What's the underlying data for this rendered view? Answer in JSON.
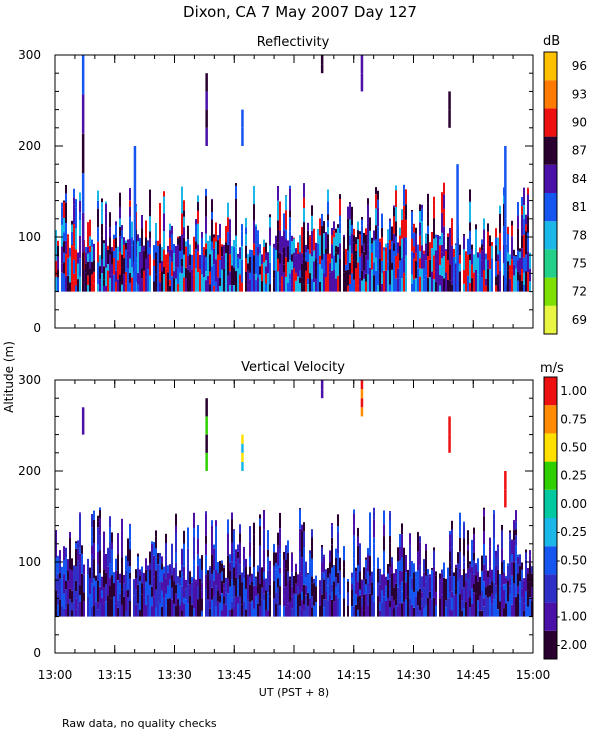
{
  "title": "Dixon, CA  7 May 2007  Day 127",
  "footnote": "Raw data, no quality checks",
  "chart_data": [
    {
      "type": "heatmap",
      "title": "Reflectivity",
      "xlabel": "UT  (PST + 8)",
      "ylabel": "Altitude (m)",
      "xlim": [
        "13:00",
        "15:00"
      ],
      "xticks": [
        "13:00",
        "13:15",
        "13:30",
        "13:45",
        "14:00",
        "14:15",
        "14:30",
        "14:45",
        "15:00"
      ],
      "ylim": [
        0,
        300
      ],
      "yticks": [
        "0",
        "100",
        "200",
        "300"
      ],
      "colorbar": {
        "unit": "dB",
        "ticks": [
          "69",
          "72",
          "75",
          "78",
          "81",
          "84",
          "87",
          "90",
          "93",
          "96"
        ],
        "colors": [
          "#e8f542",
          "#7ee000",
          "#22d08a",
          "#1ab8e8",
          "#1555f0",
          "#4a10a8",
          "#2a0030",
          "#ee1010",
          "#ff7a00",
          "#ffc000"
        ]
      },
      "echo_base_m": 40,
      "typical_top_m": [
        80,
        160
      ],
      "dominant_palette": [
        "#4a10a8",
        "#2a0030",
        "#1555f0",
        "#1ab8e8",
        "#ee1010"
      ],
      "tall_echoes": [
        {
          "time": "13:07",
          "bottom_m": 40,
          "top_m": 300,
          "palette": [
            "#2a0030",
            "#4a10a8",
            "#1555f0"
          ]
        },
        {
          "time": "13:38",
          "bottom_m": 200,
          "top_m": 280,
          "palette": [
            "#4a10a8",
            "#2a0030"
          ]
        },
        {
          "time": "13:47",
          "bottom_m": 200,
          "top_m": 240,
          "palette": [
            "#1555f0"
          ]
        },
        {
          "time": "14:07",
          "bottom_m": 280,
          "top_m": 300,
          "palette": [
            "#2a0030"
          ]
        },
        {
          "time": "14:17",
          "bottom_m": 260,
          "top_m": 300,
          "palette": [
            "#4a10a8"
          ]
        },
        {
          "time": "14:39",
          "bottom_m": 220,
          "top_m": 260,
          "palette": [
            "#2a0030"
          ]
        },
        {
          "time": "13:20",
          "bottom_m": 40,
          "top_m": 200,
          "palette": [
            "#1555f0"
          ]
        },
        {
          "time": "14:41",
          "bottom_m": 40,
          "top_m": 180,
          "palette": [
            "#1555f0"
          ]
        },
        {
          "time": "14:53",
          "bottom_m": 40,
          "top_m": 200,
          "palette": [
            "#1555f0"
          ]
        }
      ]
    },
    {
      "type": "heatmap",
      "title": "Vertical Velocity",
      "xlabel": "UT  (PST + 8)",
      "ylabel": "Altitude (m)",
      "xlim": [
        "13:00",
        "15:00"
      ],
      "xticks": [
        "13:00",
        "13:15",
        "13:30",
        "13:45",
        "14:00",
        "14:15",
        "14:30",
        "14:45",
        "15:00"
      ],
      "ylim": [
        0,
        300
      ],
      "yticks": [
        "0",
        "100",
        "200",
        "300"
      ],
      "colorbar": {
        "unit": "m/s",
        "ticks": [
          "-2.00",
          "-1.00",
          "-0.75",
          "-0.50",
          "-0.25",
          "0.00",
          "0.25",
          "0.50",
          "0.75",
          "1.00"
        ],
        "colors": [
          "#2a0030",
          "#4a10a8",
          "#2f2fc8",
          "#1555f0",
          "#1ab8e8",
          "#00c8a0",
          "#30d000",
          "#ffe000",
          "#ff8c00",
          "#ee1010"
        ]
      },
      "echo_base_m": 40,
      "typical_top_m": [
        80,
        160
      ],
      "dominant_palette": [
        "#2a0030",
        "#4a10a8",
        "#2f2fc8",
        "#1555f0"
      ],
      "tall_echoes": [
        {
          "time": "13:07",
          "bottom_m": 240,
          "top_m": 270,
          "palette": [
            "#4a10a8"
          ]
        },
        {
          "time": "13:38",
          "bottom_m": 200,
          "top_m": 280,
          "palette": [
            "#30d000",
            "#2a0030"
          ]
        },
        {
          "time": "13:47",
          "bottom_m": 200,
          "top_m": 240,
          "palette": [
            "#1ab8e8",
            "#ffe000"
          ]
        },
        {
          "time": "14:07",
          "bottom_m": 280,
          "top_m": 300,
          "palette": [
            "#4a10a8"
          ]
        },
        {
          "time": "14:17",
          "bottom_m": 260,
          "top_m": 300,
          "palette": [
            "#ff8c00",
            "#ee1010"
          ]
        },
        {
          "time": "14:39",
          "bottom_m": 220,
          "top_m": 260,
          "palette": [
            "#ee1010"
          ]
        },
        {
          "time": "14:53",
          "bottom_m": 160,
          "top_m": 200,
          "palette": [
            "#ee1010"
          ]
        }
      ]
    }
  ]
}
